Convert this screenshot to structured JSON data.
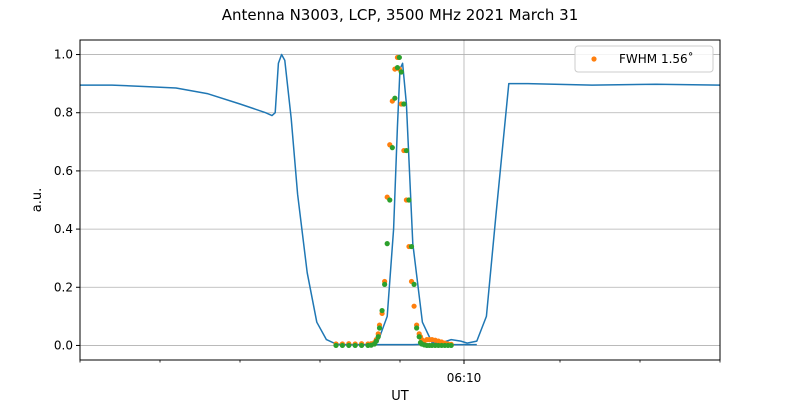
{
  "chart_data": {
    "type": "line",
    "title": "Antenna N3003, LCP, 3500 MHz 2021 March 31",
    "xlabel": "UT",
    "ylabel": "a.u.",
    "x_tick_labels": [
      {
        "label": "06:10",
        "value": 6.0
      }
    ],
    "ylim": [
      -0.05,
      1.05
    ],
    "y_ticks": [
      "0.0",
      "0.2",
      "0.4",
      "0.6",
      "0.8",
      "1.0"
    ],
    "grid": true,
    "legend_position": "top-right",
    "legend": [
      {
        "label": "FWHM 1.56$^\\circ$",
        "display": "FWHM 1.56˚",
        "color": "#ff7f0e"
      }
    ],
    "series": [
      {
        "kind": "line",
        "color": "#1f77b4",
        "x": [
          0.0,
          0.5,
          1.0,
          1.5,
          2.0,
          2.5,
          2.9,
          3.0,
          3.05,
          3.1,
          3.15,
          3.2,
          3.3,
          3.4,
          3.55,
          3.7,
          3.85,
          4.0,
          4.15,
          4.3,
          4.5,
          4.8,
          5.2,
          5.5,
          5.7,
          5.8,
          5.95,
          6.05,
          6.2,
          6.35,
          6.5,
          6.7,
          7.0,
          8.0,
          9.0,
          10.0
        ],
        "values": [
          0.895,
          0.895,
          0.89,
          0.885,
          0.865,
          0.83,
          0.8,
          0.79,
          0.8,
          0.97,
          1.0,
          0.98,
          0.78,
          0.52,
          0.25,
          0.08,
          0.02,
          0.005,
          0.003,
          0.003,
          0.003,
          0.003,
          0.003,
          0.005,
          0.013,
          0.02,
          0.015,
          0.008,
          0.015,
          0.1,
          0.45,
          0.9,
          0.9,
          0.895,
          0.898,
          0.895
        ]
      },
      {
        "kind": "line",
        "color": "#1f77b4",
        "x": [
          4.0,
          4.3,
          4.5,
          4.65,
          4.8,
          4.9,
          4.96,
          5.0,
          5.04,
          5.1,
          5.2,
          5.35,
          5.5,
          5.8,
          6.2
        ],
        "values": [
          0.003,
          0.003,
          0.003,
          0.01,
          0.1,
          0.4,
          0.75,
          0.95,
          0.97,
          0.83,
          0.35,
          0.08,
          0.01,
          0.003,
          0.003
        ]
      },
      {
        "kind": "scatter",
        "color": "#ff7f0e",
        "x": [
          4.0,
          4.1,
          4.2,
          4.3,
          4.4,
          4.5,
          4.55,
          4.6,
          4.63,
          4.66,
          4.68,
          4.72,
          4.76,
          4.8,
          4.84,
          4.88,
          4.92,
          4.96,
          4.99,
          5.02,
          5.06,
          5.1,
          5.14,
          5.18,
          5.22,
          5.26,
          5.3,
          5.32,
          5.34,
          5.38,
          5.42,
          5.46,
          5.5,
          5.55,
          5.6,
          5.65,
          5.7,
          5.75,
          5.8
        ],
        "values": [
          0.005,
          0.005,
          0.006,
          0.005,
          0.006,
          0.005,
          0.006,
          0.01,
          0.02,
          0.04,
          0.07,
          0.11,
          0.22,
          0.51,
          0.69,
          0.84,
          0.95,
          0.99,
          0.95,
          0.83,
          0.67,
          0.5,
          0.34,
          0.22,
          0.135,
          0.07,
          0.04,
          0.03,
          0.02,
          0.015,
          0.02,
          0.02,
          0.02,
          0.018,
          0.015,
          0.012,
          0.008,
          0.005,
          0.004
        ]
      },
      {
        "kind": "scatter",
        "color": "#2ca02c",
        "x": [
          4.0,
          4.1,
          4.2,
          4.3,
          4.4,
          4.5,
          4.55,
          4.6,
          4.63,
          4.66,
          4.68,
          4.72,
          4.76,
          4.8,
          4.84,
          4.88,
          4.92,
          4.96,
          4.99,
          5.02,
          5.06,
          5.1,
          5.14,
          5.18,
          5.22,
          5.26,
          5.3,
          5.32,
          5.34,
          5.38,
          5.42,
          5.46,
          5.5,
          5.55,
          5.6,
          5.65,
          5.7,
          5.75,
          5.8
        ],
        "values": [
          0.0,
          0.0,
          0.0,
          0.0,
          0.0,
          0.0,
          0.001,
          0.005,
          0.015,
          0.03,
          0.06,
          0.12,
          0.21,
          0.35,
          0.5,
          0.68,
          0.85,
          0.955,
          0.99,
          0.94,
          0.83,
          0.67,
          0.5,
          0.34,
          0.21,
          0.06,
          0.03,
          0.01,
          0.005,
          0.002,
          0.0,
          0.0,
          0.0,
          0.0,
          0.0,
          0.0,
          0.0,
          0.0,
          0.0
        ]
      }
    ]
  }
}
